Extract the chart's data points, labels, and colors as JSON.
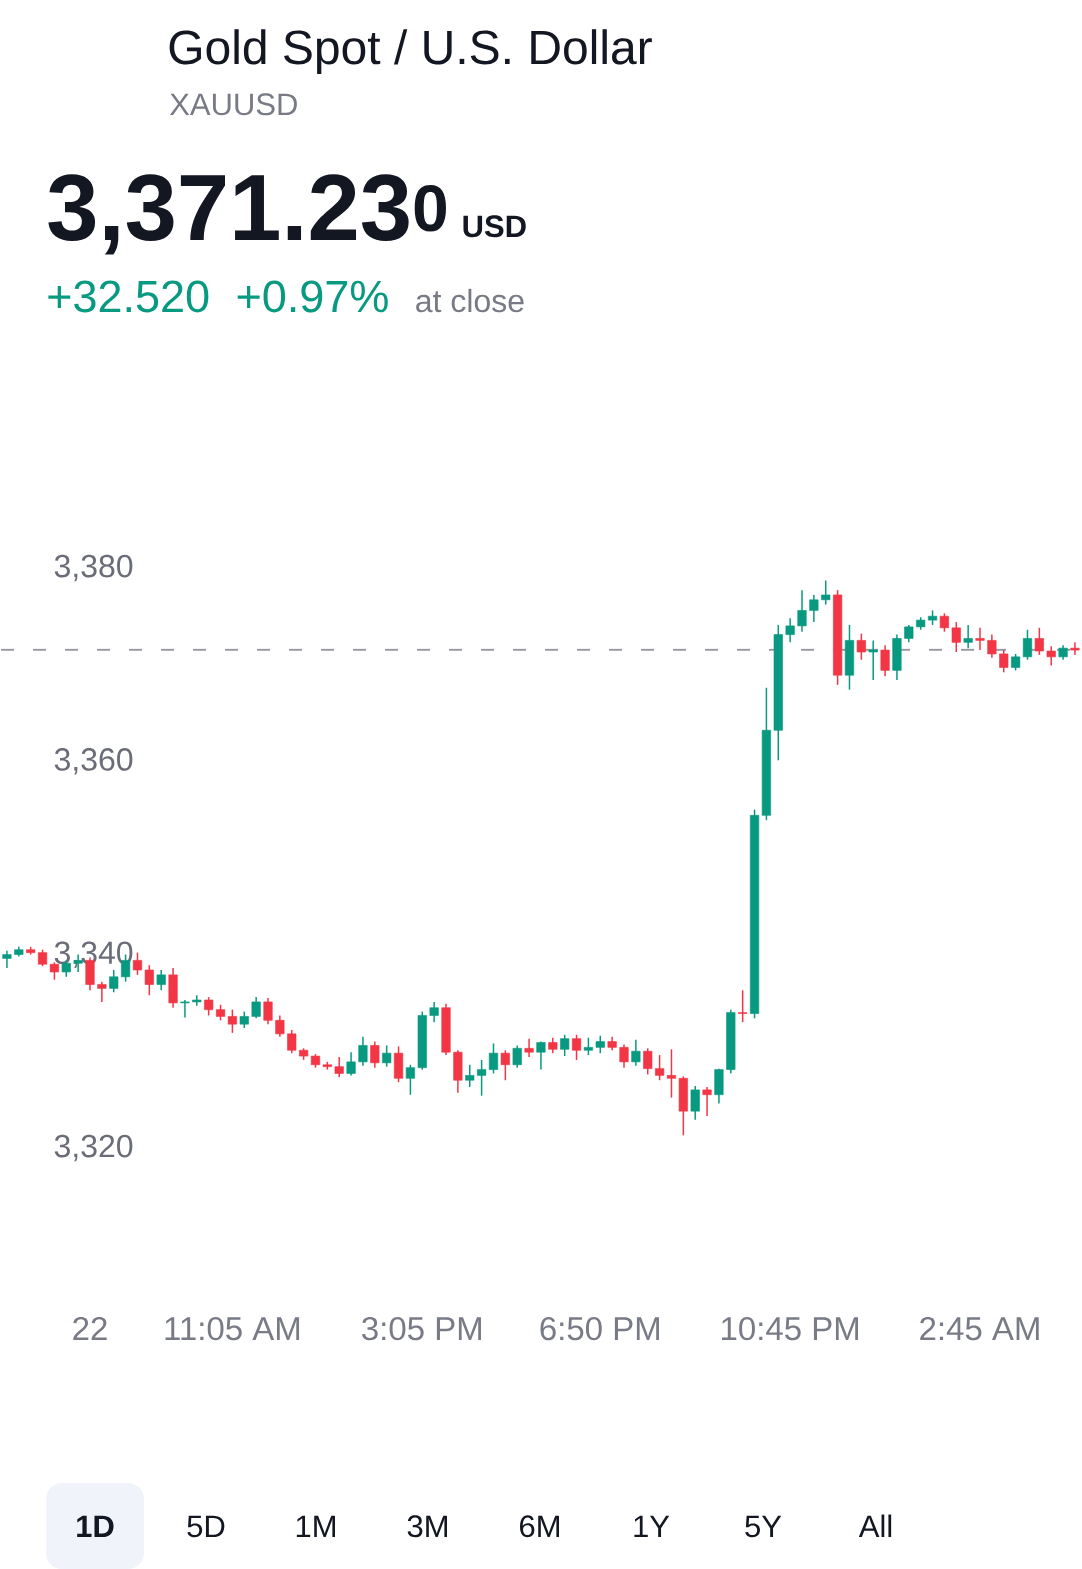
{
  "chart_data": {
    "type": "candlestick",
    "title": "Gold Spot / U.S. Dollar",
    "subtitle": "XAUUSD",
    "annotations": [
      "3,371.23$^{0}$",
      "USD",
      "+32.520",
      "+0.97%",
      "at close",
      "1D",
      "5D",
      "1M",
      "3M",
      "6M",
      "1Y",
      "5Y",
      "All"
    ],
    "categories": [
      null,
      null,
      null,
      null,
      null,
      null,
      null,
      "22",
      null,
      null,
      null,
      null,
      null,
      null,
      null,
      null,
      null,
      null,
      null,
      "11:05 AM",
      null,
      null,
      null,
      null,
      null,
      null,
      null,
      null,
      null,
      null,
      null,
      null,
      null,
      null,
      null,
      "3:05 PM",
      null,
      null,
      null,
      null,
      null,
      null,
      null,
      null,
      null,
      null,
      null,
      null,
      null,
      null,
      "6:50 PM",
      null,
      null,
      null,
      null,
      null,
      null,
      null,
      null,
      null,
      null,
      null,
      null,
      null,
      null,
      null,
      "10:45 PM",
      null,
      null,
      null,
      null,
      null,
      null,
      null,
      null,
      null,
      null,
      null,
      null,
      null,
      null,
      null,
      "2:45 AM",
      null,
      null,
      null,
      null,
      null,
      null,
      null,
      null
    ],
    "ohlc": [
      [
        3339.3,
        3340.1,
        3338.3,
        3339.7
      ],
      [
        3339.7,
        3340.5,
        3339.5,
        3340.2
      ],
      [
        3340.2,
        3340.5,
        3339.7,
        3339.9
      ],
      [
        3339.9,
        3340.2,
        3338.5,
        3338.7
      ],
      [
        3338.7,
        3338.9,
        3337.1,
        3337.9
      ],
      [
        3337.9,
        3339.1,
        3337.4,
        3338.8
      ],
      [
        3338.8,
        3339.7,
        3337.9,
        3339.1
      ],
      [
        3339.1,
        3339.4,
        3336.0,
        3336.6
      ],
      [
        3336.6,
        3336.9,
        3334.8,
        3336.2
      ],
      [
        3336.2,
        3338.1,
        3335.8,
        3337.4
      ],
      [
        3337.4,
        3339.7,
        3336.9,
        3339.1
      ],
      [
        3339.1,
        3339.9,
        3337.6,
        3338.1
      ],
      [
        3338.1,
        3338.6,
        3335.5,
        3336.6
      ],
      [
        3336.6,
        3338.1,
        3336.0,
        3337.6
      ],
      [
        3337.6,
        3338.3,
        3334.2,
        3334.7
      ],
      [
        3334.7,
        3335.0,
        3333.2,
        3334.8
      ],
      [
        3334.8,
        3335.5,
        3334.4,
        3335.0
      ],
      [
        3335.0,
        3335.3,
        3333.4,
        3334.0
      ],
      [
        3334.0,
        3334.5,
        3332.9,
        3333.3
      ],
      [
        3333.3,
        3334.0,
        3331.6,
        3332.5
      ],
      [
        3332.5,
        3333.8,
        3332.1,
        3333.3
      ],
      [
        3333.3,
        3335.3,
        3333.1,
        3334.8
      ],
      [
        3334.8,
        3335.2,
        3332.5,
        3332.9
      ],
      [
        3332.9,
        3333.4,
        3331.2,
        3331.5
      ],
      [
        3331.5,
        3331.9,
        3329.5,
        3329.8
      ],
      [
        3329.8,
        3330.0,
        3328.8,
        3329.2
      ],
      [
        3329.2,
        3329.4,
        3328.0,
        3328.3
      ],
      [
        3328.3,
        3328.6,
        3327.8,
        3328.1
      ],
      [
        3328.1,
        3329.1,
        3327.0,
        3327.4
      ],
      [
        3327.4,
        3329.6,
        3327.2,
        3328.6
      ],
      [
        3328.6,
        3331.2,
        3328.2,
        3330.3
      ],
      [
        3330.3,
        3330.7,
        3328.0,
        3328.5
      ],
      [
        3328.5,
        3330.3,
        3328.1,
        3329.5
      ],
      [
        3329.5,
        3330.2,
        3326.5,
        3326.9
      ],
      [
        3326.9,
        3328.3,
        3325.2,
        3328.0
      ],
      [
        3328.0,
        3333.8,
        3327.8,
        3333.4
      ],
      [
        3333.4,
        3334.8,
        3332.7,
        3334.2
      ],
      [
        3334.2,
        3334.6,
        3329.3,
        3329.6
      ],
      [
        3329.6,
        3329.8,
        3325.4,
        3326.7
      ],
      [
        3326.7,
        3328.3,
        3326.0,
        3327.2
      ],
      [
        3327.2,
        3328.8,
        3325.1,
        3327.8
      ],
      [
        3327.8,
        3330.5,
        3327.4,
        3329.5
      ],
      [
        3329.5,
        3329.8,
        3326.7,
        3328.3
      ],
      [
        3328.3,
        3330.3,
        3328.0,
        3330.0
      ],
      [
        3330.0,
        3331.0,
        3329.1,
        3329.6
      ],
      [
        3329.6,
        3330.7,
        3327.8,
        3330.6
      ],
      [
        3330.6,
        3331.1,
        3329.5,
        3329.9
      ],
      [
        3329.9,
        3331.4,
        3329.2,
        3331.0
      ],
      [
        3331.0,
        3331.4,
        3328.8,
        3329.8
      ],
      [
        3329.8,
        3331.1,
        3329.3,
        3330.1
      ],
      [
        3330.1,
        3331.3,
        3329.5,
        3330.7
      ],
      [
        3330.7,
        3331.2,
        3329.8,
        3330.1
      ],
      [
        3330.1,
        3330.4,
        3328.0,
        3328.6
      ],
      [
        3328.6,
        3330.9,
        3328.2,
        3329.7
      ],
      [
        3329.7,
        3330.0,
        3327.3,
        3327.9
      ],
      [
        3327.9,
        3329.3,
        3326.7,
        3327.2
      ],
      [
        3327.2,
        3329.9,
        3324.9,
        3326.9
      ],
      [
        3326.9,
        3327.1,
        3321.0,
        3323.5
      ],
      [
        3323.5,
        3326.1,
        3322.6,
        3325.7
      ],
      [
        3325.7,
        3326.0,
        3323.0,
        3325.2
      ],
      [
        3325.2,
        3327.9,
        3324.3,
        3327.8
      ],
      [
        3327.8,
        3334.0,
        3327.4,
        3333.7
      ],
      [
        3333.7,
        3336.0,
        3332.7,
        3333.6
      ],
      [
        3333.6,
        3354.7,
        3333.1,
        3354.1
      ],
      [
        3354.1,
        3367.3,
        3353.6,
        3362.9
      ],
      [
        3362.9,
        3373.8,
        3359.8,
        3372.8
      ],
      [
        3372.8,
        3374.5,
        3372.0,
        3373.7
      ],
      [
        3373.7,
        3377.4,
        3373.1,
        3375.3
      ],
      [
        3375.3,
        3376.9,
        3374.1,
        3376.4
      ],
      [
        3376.4,
        3378.4,
        3375.9,
        3376.9
      ],
      [
        3376.9,
        3377.4,
        3367.6,
        3368.6
      ],
      [
        3368.6,
        3373.8,
        3367.1,
        3372.2
      ],
      [
        3372.2,
        3372.9,
        3370.2,
        3371.0
      ],
      [
        3371.0,
        3372.2,
        3368.1,
        3371.2
      ],
      [
        3371.2,
        3371.7,
        3368.5,
        3369.1
      ],
      [
        3369.1,
        3372.8,
        3368.1,
        3372.4
      ],
      [
        3372.4,
        3373.8,
        3372.0,
        3373.6
      ],
      [
        3373.6,
        3374.6,
        3373.3,
        3374.3
      ],
      [
        3374.3,
        3375.3,
        3373.8,
        3374.7
      ],
      [
        3374.7,
        3375.0,
        3373.1,
        3373.5
      ],
      [
        3373.5,
        3374.1,
        3371.0,
        3372.0
      ],
      [
        3372.0,
        3373.8,
        3371.4,
        3372.4
      ],
      [
        3372.4,
        3373.5,
        3371.2,
        3372.2
      ],
      [
        3372.2,
        3372.8,
        3370.4,
        3370.8
      ],
      [
        3370.8,
        3371.2,
        3368.9,
        3369.4
      ],
      [
        3369.4,
        3370.8,
        3369.1,
        3370.5
      ],
      [
        3370.5,
        3373.3,
        3370.2,
        3372.4
      ],
      [
        3372.4,
        3373.5,
        3370.7,
        3371.1
      ],
      [
        3371.1,
        3371.6,
        3369.6,
        3370.5
      ],
      [
        3370.5,
        3371.7,
        3370.2,
        3371.4
      ],
      [
        3371.4,
        3372.0,
        3370.7,
        3371.2
      ]
    ],
    "colors": [
      "#089981",
      "#089981",
      "#f23645",
      "#f23645",
      "#f23645",
      "#089981",
      "#089981",
      "#f23645",
      "#f23645",
      "#089981",
      "#089981",
      "#f23645",
      "#f23645",
      "#089981",
      "#f23645",
      "#089981",
      "#089981",
      "#f23645",
      "#f23645",
      "#f23645",
      "#089981",
      "#089981",
      "#f23645",
      "#f23645",
      "#f23645",
      "#f23645",
      "#f23645",
      "#f23645",
      "#f23645",
      "#089981",
      "#089981",
      "#f23645",
      "#089981",
      "#f23645",
      "#089981",
      "#089981",
      "#089981",
      "#f23645",
      "#f23645",
      "#089981",
      "#089981",
      "#089981",
      "#f23645",
      "#089981",
      "#f23645",
      "#089981",
      "#f23645",
      "#089981",
      "#f23645",
      "#089981",
      "#089981",
      "#f23645",
      "#f23645",
      "#089981",
      "#f23645",
      "#f23645",
      "#f23645",
      "#f23645",
      "#089981",
      "#f23645",
      "#089981",
      "#089981",
      "#f23645",
      "#089981",
      "#089981",
      "#089981",
      "#089981",
      "#089981",
      "#089981",
      "#089981",
      "#f23645",
      "#089981",
      "#f23645",
      "#089981",
      "#f23645",
      "#089981",
      "#089981",
      "#089981",
      "#089981",
      "#f23645",
      "#f23645",
      "#089981",
      "#f23645",
      "#f23645",
      "#f23645",
      "#089981",
      "#089981",
      "#f23645",
      "#f23645",
      "#089981",
      "#f23645"
    ],
    "ylim": [
      3320,
      3380
    ],
    "yticks": [
      {
        "value": 3320,
        "label": "3,320"
      },
      {
        "value": 3340,
        "label": "3,340"
      },
      {
        "value": 3360,
        "label": "3,360"
      },
      {
        "value": 3380,
        "label": "3,380"
      }
    ],
    "ref_lines": [
      {
        "axis": "y",
        "value": 3371.23,
        "color": "#9598a1",
        "line_style": "dashed"
      }
    ]
  }
}
